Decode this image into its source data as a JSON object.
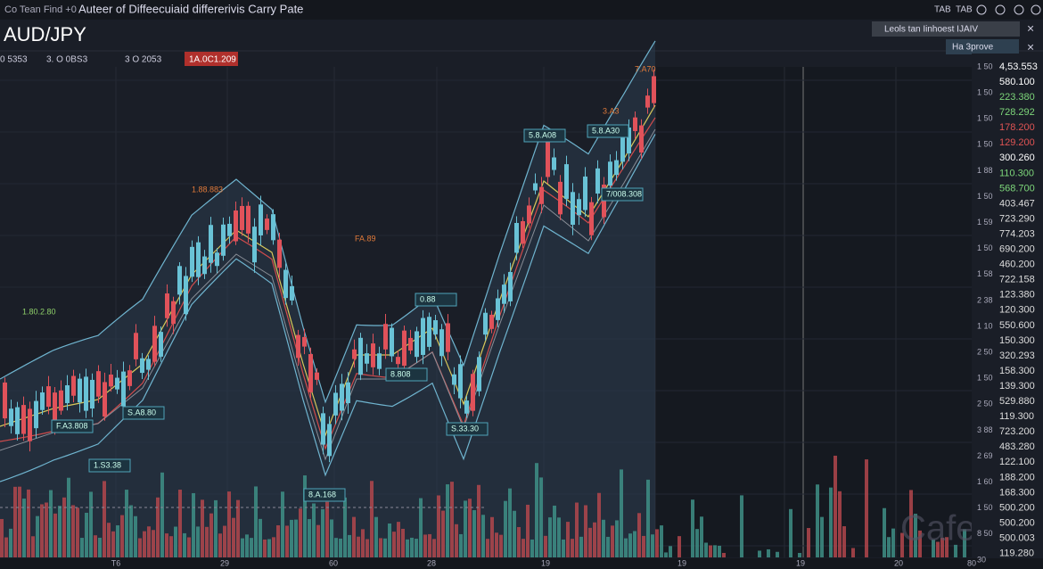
{
  "header": {
    "menu": "Co Tean Find +0",
    "title": "Auteer of Diffeecuiaid differerivis Carry Pate",
    "icons": [
      "TAB",
      "TAB"
    ]
  },
  "symbol": "AUD/JPY",
  "ohlc": [
    "0 5353",
    "3. O 0BS3",
    "3 O 2053"
  ],
  "ohlc_highlight": "1A.0C1.209",
  "panel": {
    "search": "Leols tan Iinhoest IJAIV",
    "button": "Ha 3prove"
  },
  "price_axis_left": [
    "1 50",
    "1 50",
    "1 50",
    "1 50",
    "1 88",
    "1 50",
    "1 59",
    "1 50",
    "1 58",
    "2 38",
    "1 10",
    "2 50",
    "1 50",
    "2 50",
    "3 88",
    "2 69",
    "1 60",
    "1 50",
    "8 50",
    "30"
  ],
  "price_axis_right": [
    "4,53.553",
    "580.100",
    "223.380",
    "728.292",
    "178.200",
    "129.200",
    "300.260",
    "110.300",
    "568.700",
    "403.467",
    "723.290",
    "774.203",
    "690.200",
    "460.200",
    "722.158",
    "123.380",
    "120.300",
    "550.600",
    "150.300",
    "320.293",
    "158.300",
    "139.300",
    "529.880",
    "119.300",
    "723.200",
    "483.280",
    "122.100",
    "188.200",
    "168.300",
    "500.200",
    "500.200",
    "500.003",
    "119.280"
  ],
  "time_axis": [
    "T6",
    "29",
    "60",
    "28",
    "19",
    "19",
    "19",
    "20",
    "80"
  ],
  "annotations": [
    "1.88.883",
    "FA.89",
    "1.80.2.80",
    "7.A70",
    "3.A3",
    "5.8.A08",
    "5.8.A30",
    "7/008.308",
    "0.88",
    "S.A8.80",
    "F.A3.808",
    "1.S3.38",
    "8.808",
    "S.33.30",
    "8.A.168"
  ],
  "watermark": "Cafe fx"
}
